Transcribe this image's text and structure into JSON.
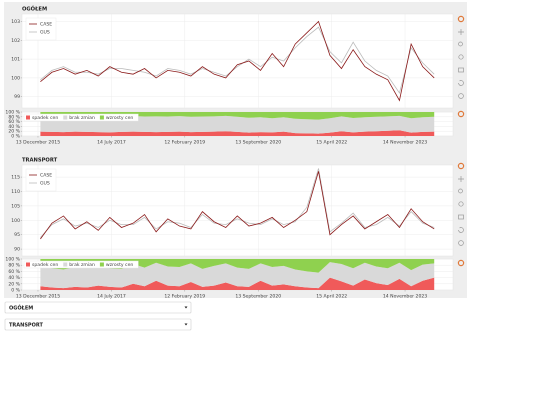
{
  "chart_data": [
    {
      "type": "line",
      "title": "OGÓŁEM",
      "x": [
        "2016-01-01",
        "2016-04-01",
        "2016-07-01",
        "2016-10-01",
        "2017-01-01",
        "2017-04-01",
        "2017-07-01",
        "2017-10-01",
        "2018-01-01",
        "2018-04-01",
        "2018-07-01",
        "2018-10-01",
        "2019-01-01",
        "2019-04-01",
        "2019-07-01",
        "2019-10-01",
        "2020-01-01",
        "2020-04-01",
        "2020-07-01",
        "2020-10-01",
        "2021-01-01",
        "2021-04-01",
        "2021-07-01",
        "2021-10-01",
        "2022-01-01",
        "2022-04-01",
        "2022-07-01",
        "2022-10-01",
        "2023-01-01",
        "2023-04-01",
        "2023-07-01",
        "2023-10-01",
        "2024-01-01",
        "2024-04-01",
        "2024-07-01"
      ],
      "series": [
        {
          "name": "CASE",
          "color": "#8b1a1a",
          "values": [
            99.8,
            100.3,
            100.5,
            100.2,
            100.4,
            100.1,
            100.6,
            100.3,
            100.2,
            100.5,
            100.0,
            100.4,
            100.3,
            100.1,
            100.6,
            100.2,
            100.0,
            100.7,
            100.9,
            100.4,
            101.3,
            100.6,
            101.8,
            102.4,
            103.0,
            101.2,
            100.5,
            101.5,
            100.6,
            100.2,
            99.9,
            98.8,
            101.8,
            100.6,
            100.0
          ]
        },
        {
          "name": "GUS",
          "color": "#bbbbbb",
          "values": [
            99.9,
            100.4,
            100.6,
            100.3,
            100.3,
            100.2,
            100.5,
            100.5,
            100.4,
            100.3,
            100.1,
            100.5,
            100.4,
            100.2,
            100.5,
            100.3,
            100.1,
            100.6,
            101.0,
            100.6,
            101.1,
            100.9,
            101.6,
            102.2,
            102.7,
            101.4,
            100.8,
            101.9,
            100.9,
            100.4,
            100.1,
            99.2,
            101.6,
            100.8,
            100.2
          ]
        }
      ],
      "xlim": [
        "2015-08-09",
        "2024-11-26"
      ],
      "ylim": [
        98.4,
        103.4
      ],
      "yticks": [
        99,
        100,
        101,
        102,
        103
      ],
      "grid": true
    },
    {
      "type": "area",
      "x": [
        "2016-01-01",
        "2016-04-01",
        "2016-07-01",
        "2016-10-01",
        "2017-01-01",
        "2017-04-01",
        "2017-07-01",
        "2017-10-01",
        "2018-01-01",
        "2018-04-01",
        "2018-07-01",
        "2018-10-01",
        "2019-01-01",
        "2019-04-01",
        "2019-07-01",
        "2019-10-01",
        "2020-01-01",
        "2020-04-01",
        "2020-07-01",
        "2020-10-01",
        "2021-01-01",
        "2021-04-01",
        "2021-07-01",
        "2021-10-01",
        "2022-01-01",
        "2022-04-01",
        "2022-07-01",
        "2022-10-01",
        "2023-01-01",
        "2023-04-01",
        "2023-07-01",
        "2023-10-01",
        "2024-01-01",
        "2024-04-01",
        "2024-07-01"
      ],
      "series": [
        {
          "name": "spadek cen",
          "color": "#f05a5a",
          "values": [
            18,
            17,
            16,
            18,
            17,
            16,
            15,
            17,
            18,
            17,
            16,
            17,
            18,
            16,
            17,
            18,
            20,
            17,
            14,
            16,
            15,
            18,
            12,
            11,
            10,
            14,
            20,
            15,
            18,
            20,
            22,
            24,
            14,
            17,
            18
          ]
        },
        {
          "name": "brak zmian",
          "color": "#d9d9d9",
          "values": [
            66,
            65,
            65,
            65,
            65,
            65,
            65,
            65,
            65,
            64,
            66,
            64,
            65,
            64,
            64,
            64,
            64,
            63,
            62,
            62,
            59,
            60,
            60,
            59,
            58,
            60,
            62,
            60,
            60,
            60,
            60,
            60,
            60,
            61,
            62
          ]
        },
        {
          "name": "wzrosty cen",
          "color": "#8fd14f",
          "values": [
            16,
            18,
            19,
            17,
            18,
            19,
            20,
            18,
            17,
            19,
            18,
            19,
            17,
            20,
            19,
            18,
            16,
            20,
            24,
            22,
            26,
            22,
            28,
            30,
            32,
            26,
            18,
            25,
            22,
            20,
            18,
            16,
            26,
            22,
            20
          ]
        }
      ],
      "xlim": [
        "2015-08-09",
        "2024-11-26"
      ],
      "ylim": [
        0,
        100
      ],
      "yticks": [
        {
          "value": 0,
          "label": "0 %"
        },
        {
          "value": 20,
          "label": "20 %"
        },
        {
          "value": 40,
          "label": "40 %"
        },
        {
          "value": 60,
          "label": "60 %"
        },
        {
          "value": 80,
          "label": "80 %"
        },
        {
          "value": 100,
          "label": "100 %"
        }
      ],
      "xticks": [
        {
          "value": "2015-12-13",
          "label": "13 December 2015"
        },
        {
          "value": "2017-07-14",
          "label": "14 July 2017"
        },
        {
          "value": "2019-02-12",
          "label": "12 February 2019"
        },
        {
          "value": "2020-09-13",
          "label": "13 September 2020"
        },
        {
          "value": "2022-04-15",
          "label": "15 April 2022"
        },
        {
          "value": "2023-11-14",
          "label": "14 November 2023"
        }
      ],
      "grid": true
    },
    {
      "type": "line",
      "title": "TRANSPORT",
      "x": [
        "2016-01-01",
        "2016-04-01",
        "2016-07-01",
        "2016-10-01",
        "2017-01-01",
        "2017-04-01",
        "2017-07-01",
        "2017-10-01",
        "2018-01-01",
        "2018-04-01",
        "2018-07-01",
        "2018-10-01",
        "2019-01-01",
        "2019-04-01",
        "2019-07-01",
        "2019-10-01",
        "2020-01-01",
        "2020-04-01",
        "2020-07-01",
        "2020-10-01",
        "2021-01-01",
        "2021-04-01",
        "2021-07-01",
        "2021-10-01",
        "2022-01-01",
        "2022-04-01",
        "2022-07-01",
        "2022-10-01",
        "2023-01-01",
        "2023-04-01",
        "2023-07-01",
        "2023-10-01",
        "2024-01-01",
        "2024-04-01",
        "2024-07-01"
      ],
      "series": [
        {
          "name": "CASE",
          "color": "#8b1a1a",
          "values": [
            93.5,
            99.0,
            101.5,
            97.0,
            99.5,
            96.5,
            101.0,
            97.5,
            99.0,
            102.0,
            96.0,
            100.5,
            98.0,
            97.0,
            103.0,
            99.5,
            97.5,
            101.5,
            98.0,
            99.0,
            101.0,
            97.5,
            100.0,
            103.0,
            117.0,
            95.0,
            98.5,
            101.5,
            97.0,
            99.5,
            102.0,
            97.5,
            104.0,
            99.5,
            97.0
          ]
        },
        {
          "name": "GUS",
          "color": "#bbbbbb",
          "values": [
            94.0,
            98.5,
            100.5,
            98.0,
            99.0,
            97.5,
            100.0,
            98.5,
            98.5,
            101.0,
            97.0,
            99.5,
            99.0,
            97.5,
            102.0,
            99.0,
            98.5,
            100.5,
            99.0,
            98.5,
            100.5,
            98.5,
            99.5,
            104.5,
            118.0,
            96.0,
            99.0,
            102.5,
            97.5,
            98.5,
            101.0,
            98.0,
            103.0,
            99.0,
            97.5
          ]
        }
      ],
      "xlim": [
        "2015-08-09",
        "2024-11-26"
      ],
      "ylim": [
        87.6,
        119.2
      ],
      "yticks": [
        90,
        95,
        100,
        105,
        110,
        115
      ],
      "grid": true
    },
    {
      "type": "area",
      "x": [
        "2016-01-01",
        "2016-04-01",
        "2016-07-01",
        "2016-10-01",
        "2017-01-01",
        "2017-04-01",
        "2017-07-01",
        "2017-10-01",
        "2018-01-01",
        "2018-04-01",
        "2018-07-01",
        "2018-10-01",
        "2019-01-01",
        "2019-04-01",
        "2019-07-01",
        "2019-10-01",
        "2020-01-01",
        "2020-04-01",
        "2020-07-01",
        "2020-10-01",
        "2021-01-01",
        "2021-04-01",
        "2021-07-01",
        "2021-10-01",
        "2022-01-01",
        "2022-04-01",
        "2022-07-01",
        "2022-10-01",
        "2023-01-01",
        "2023-04-01",
        "2023-07-01",
        "2023-10-01",
        "2024-01-01",
        "2024-04-01",
        "2024-07-01"
      ],
      "series": [
        {
          "name": "spadek cen",
          "color": "#f05a5a",
          "values": [
            12,
            8,
            6,
            10,
            8,
            14,
            10,
            8,
            20,
            12,
            30,
            14,
            12,
            26,
            10,
            14,
            24,
            12,
            10,
            30,
            14,
            18,
            12,
            8,
            6,
            40,
            28,
            14,
            34,
            22,
            16,
            36,
            12,
            30,
            40
          ]
        },
        {
          "name": "brak zmian",
          "color": "#d9d9d9",
          "values": [
            66,
            62,
            60,
            64,
            64,
            66,
            60,
            60,
            64,
            60,
            58,
            62,
            62,
            60,
            58,
            64,
            62,
            60,
            58,
            56,
            60,
            60,
            54,
            52,
            50,
            50,
            56,
            56,
            54,
            54,
            54,
            52,
            52,
            52,
            46
          ]
        },
        {
          "name": "wzrosty cen",
          "color": "#8fd14f",
          "values": [
            22,
            30,
            34,
            26,
            28,
            20,
            30,
            32,
            16,
            28,
            12,
            24,
            26,
            14,
            32,
            22,
            14,
            28,
            32,
            14,
            26,
            22,
            34,
            40,
            44,
            10,
            16,
            30,
            12,
            24,
            30,
            12,
            36,
            18,
            14
          ]
        }
      ],
      "xlim": [
        "2015-08-09",
        "2024-11-26"
      ],
      "ylim": [
        0,
        100
      ],
      "yticks": [
        {
          "value": 0,
          "label": "0 %"
        },
        {
          "value": 20,
          "label": "20 %"
        },
        {
          "value": 40,
          "label": "40 %"
        },
        {
          "value": 60,
          "label": "60 %"
        },
        {
          "value": 80,
          "label": "80 %"
        },
        {
          "value": 100,
          "label": "100 %"
        }
      ],
      "xticks": [
        {
          "value": "2015-12-13",
          "label": "13 December 2015"
        },
        {
          "value": "2017-07-14",
          "label": "14 July 2017"
        },
        {
          "value": "2019-02-12",
          "label": "12 February 2019"
        },
        {
          "value": "2020-09-13",
          "label": "13 September 2020"
        },
        {
          "value": "2022-04-15",
          "label": "15 April 2022"
        },
        {
          "value": "2023-11-14",
          "label": "14 November 2023"
        }
      ],
      "grid": true
    }
  ],
  "controls": {
    "dropdowns": [
      "OGÓŁEM",
      "TRANSPORT"
    ]
  }
}
